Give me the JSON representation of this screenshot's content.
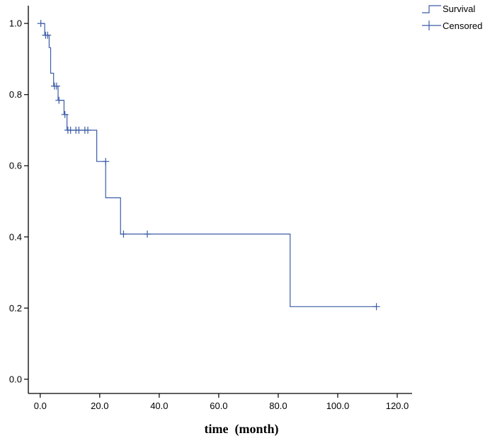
{
  "chart_data": {
    "type": "line",
    "subtype": "kaplan-meier-step",
    "title": "",
    "xlabel": "time  (month)",
    "ylabel": "",
    "xlim": [
      -4,
      125
    ],
    "ylim": [
      -0.04,
      1.05
    ],
    "x_ticks": [
      0,
      20,
      40,
      60,
      80,
      100,
      120
    ],
    "x_tick_labels": [
      "0.0",
      "20.0",
      "40.0",
      "60.0",
      "80.0",
      "100.0",
      "120.0"
    ],
    "y_ticks": [
      0,
      0.2,
      0.4,
      0.6,
      0.8,
      1.0
    ],
    "y_tick_labels": [
      "0.0",
      "0.2",
      "0.4",
      "0.6",
      "0.8",
      "1.0"
    ],
    "grid": false,
    "legend_position": "top-right",
    "legend": [
      {
        "name": "Survival",
        "marker": "step"
      },
      {
        "name": "Censored",
        "marker": "plus"
      }
    ],
    "color": "#3a5ca8",
    "series": [
      {
        "name": "Survival",
        "steps": [
          {
            "x": 0,
            "y": 1.0
          },
          {
            "x": 1.5,
            "y": 0.967
          },
          {
            "x": 3,
            "y": 0.932
          },
          {
            "x": 3.5,
            "y": 0.86
          },
          {
            "x": 4.5,
            "y": 0.824
          },
          {
            "x": 6,
            "y": 0.784
          },
          {
            "x": 8,
            "y": 0.744
          },
          {
            "x": 9,
            "y": 0.7
          },
          {
            "x": 19,
            "y": 0.612
          },
          {
            "x": 22,
            "y": 0.51
          },
          {
            "x": 27,
            "y": 0.408
          },
          {
            "x": 84,
            "y": 0.204
          }
        ],
        "end_x": 113
      },
      {
        "name": "Censored",
        "points": [
          {
            "x": 0.2,
            "y": 1.0
          },
          {
            "x": 1.8,
            "y": 0.967
          },
          {
            "x": 2.5,
            "y": 0.967
          },
          {
            "x": 4.8,
            "y": 0.824
          },
          {
            "x": 5.5,
            "y": 0.824
          },
          {
            "x": 6.3,
            "y": 0.784
          },
          {
            "x": 8.3,
            "y": 0.744
          },
          {
            "x": 9.3,
            "y": 0.7
          },
          {
            "x": 10.2,
            "y": 0.7
          },
          {
            "x": 12,
            "y": 0.7
          },
          {
            "x": 13,
            "y": 0.7
          },
          {
            "x": 15,
            "y": 0.7
          },
          {
            "x": 16,
            "y": 0.7
          },
          {
            "x": 22,
            "y": 0.612
          },
          {
            "x": 28,
            "y": 0.408
          },
          {
            "x": 36,
            "y": 0.408
          },
          {
            "x": 113,
            "y": 0.204
          }
        ]
      }
    ]
  }
}
